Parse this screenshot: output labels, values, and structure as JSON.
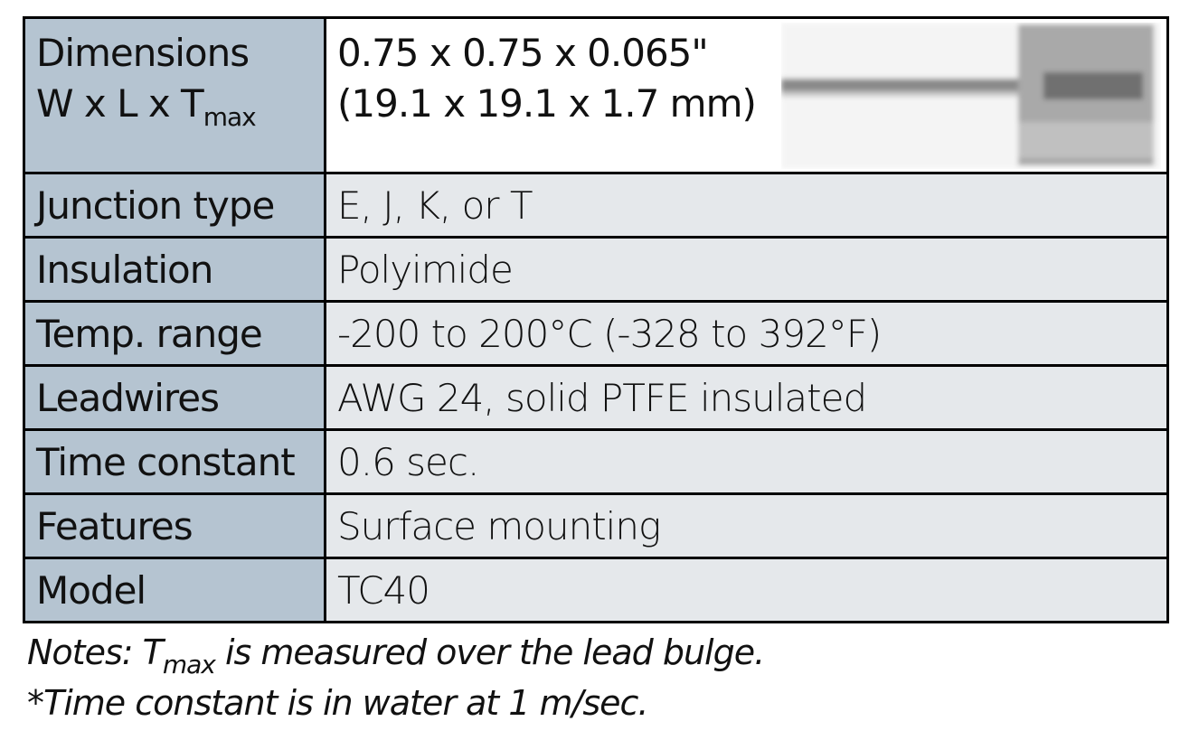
{
  "table": {
    "rows": [
      {
        "label": {
          "line1": "Dimensions",
          "line2": "W x L x T",
          "sub": "max"
        },
        "value": [
          "0.75 x 0.75 x 0.065\"",
          "(19.1 x 19.1 x 1.7 mm)"
        ]
      },
      {
        "label": "Junction type",
        "value": "E, J, K, or T"
      },
      {
        "label": "Insulation",
        "value": "Polyimide"
      },
      {
        "label": "Temp. range",
        "value": "-200 to 200°C (-328 to 392°F)"
      },
      {
        "label": "Leadwires",
        "value": "AWG 24, solid PTFE insulated"
      },
      {
        "label": "Time constant",
        "value": "0.6 sec."
      },
      {
        "label": "Features",
        "value": "Surface mounting"
      },
      {
        "label": "Model",
        "value": "TC40"
      }
    ]
  },
  "notes": [
    {
      "before": "Notes: T",
      "sub": "max",
      "after": " is measured over the lead bulge."
    },
    "*Time constant is in water at 1 m/sec."
  ]
}
